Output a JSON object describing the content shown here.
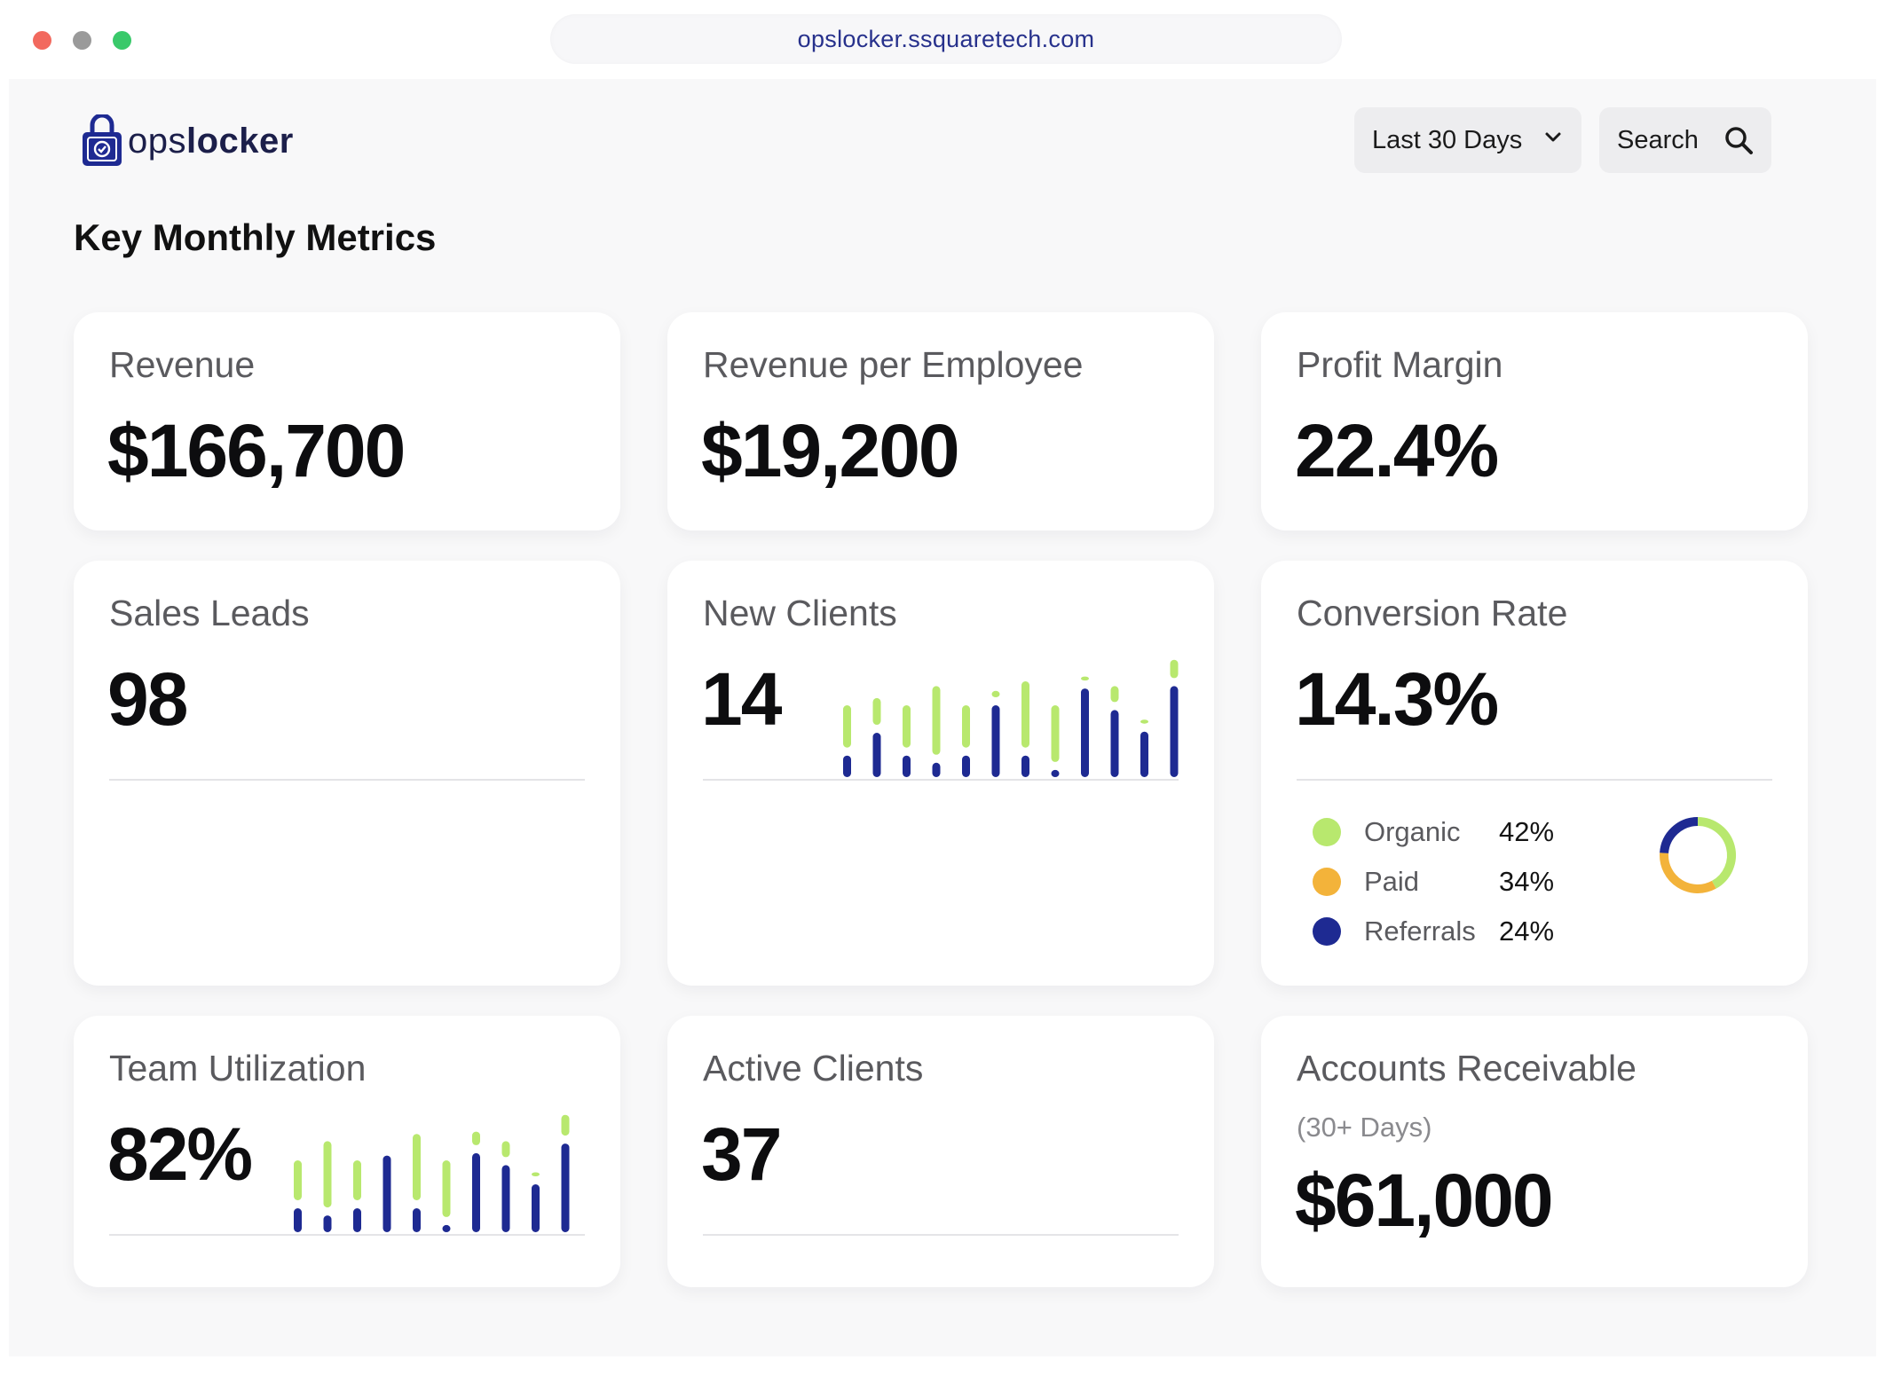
{
  "browser": {
    "url": "opslocker.ssquaretech.com"
  },
  "header": {
    "logo_text_light": "ops",
    "logo_text_bold": "locker",
    "date_range": "Last 30 Days",
    "search_label": "Search"
  },
  "page": {
    "title": "Key Monthly Metrics"
  },
  "colors": {
    "accent_navy": "#1e2a92",
    "accent_green": "#b8e86e",
    "accent_orange": "#f3b33a"
  },
  "cards": {
    "revenue": {
      "label": "Revenue",
      "value": "$166,700"
    },
    "revenue_per_employee": {
      "label": "Revenue per Employee",
      "value": "$19,200"
    },
    "profit_margin": {
      "label": "Profit Margin",
      "value": "22.4%"
    },
    "sales_leads": {
      "label": "Sales Leads",
      "value": "98"
    },
    "new_clients": {
      "label": "New Clients",
      "value": "14",
      "sparkline": [
        {
          "total": 60,
          "navy": 18
        },
        {
          "total": 66,
          "navy": 37
        },
        {
          "total": 60,
          "navy": 18
        },
        {
          "total": 76,
          "navy": 12
        },
        {
          "total": 60,
          "navy": 18
        },
        {
          "total": 72,
          "navy": 60
        },
        {
          "total": 80,
          "navy": 18
        },
        {
          "total": 60,
          "navy": 6
        },
        {
          "total": 84,
          "navy": 74
        },
        {
          "total": 76,
          "navy": 56
        },
        {
          "total": 48,
          "navy": 38
        },
        {
          "total": 98,
          "navy": 76
        }
      ]
    },
    "conversion_rate": {
      "label": "Conversion Rate",
      "value": "14.3%",
      "breakdown": [
        {
          "name": "Organic",
          "pct_label": "42%",
          "share": 42,
          "color": "#b8e86e"
        },
        {
          "name": "Paid",
          "pct_label": "34%",
          "share": 34,
          "color": "#f3b33a"
        },
        {
          "name": "Referrals",
          "pct_label": "24%",
          "share": 24,
          "color": "#1e2a92"
        }
      ]
    },
    "team_utilization": {
      "label": "Team Utilization",
      "value": "82%",
      "sparkline": [
        {
          "total": 60,
          "navy": 20
        },
        {
          "total": 76,
          "navy": 14
        },
        {
          "total": 60,
          "navy": 20
        },
        {
          "total": 72,
          "navy": 64
        },
        {
          "total": 82,
          "navy": 20
        },
        {
          "total": 60,
          "navy": 6
        },
        {
          "total": 84,
          "navy": 66
        },
        {
          "total": 76,
          "navy": 56
        },
        {
          "total": 50,
          "navy": 40
        },
        {
          "total": 98,
          "navy": 74
        }
      ]
    },
    "active_clients": {
      "label": "Active Clients",
      "value": "37"
    },
    "accounts_receivable": {
      "label": "Accounts Receivable",
      "sublabel": "(30+ Days)",
      "value": "$61,000"
    }
  }
}
